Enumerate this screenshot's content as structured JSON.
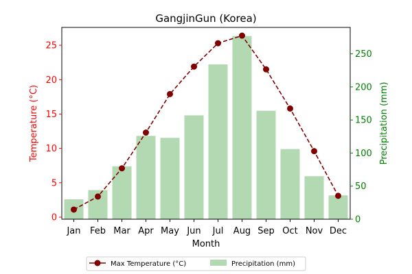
{
  "chart_data": {
    "type": "bar+line",
    "title": "GangjinGun (Korea)",
    "xlabel": "Month",
    "categories": [
      "Jan",
      "Feb",
      "Mar",
      "Apr",
      "May",
      "Jun",
      "Jul",
      "Aug",
      "Sep",
      "Oct",
      "Nov",
      "Dec"
    ],
    "y_left": {
      "label": "Temperature (°C)",
      "range": [
        -0.3,
        27.6
      ],
      "ticks": [
        0,
        5,
        10,
        15,
        20,
        25
      ],
      "color": "#ff0000"
    },
    "y_right": {
      "label": "Precipitation (mm)",
      "range": [
        0,
        290
      ],
      "ticks": [
        0,
        50,
        100,
        150,
        200,
        250
      ],
      "color": "#008000"
    },
    "series": [
      {
        "name": "Max Temperature (°C)",
        "kind": "line",
        "axis": "left",
        "color": "#800000",
        "values": [
          1.1,
          3.0,
          7.1,
          12.3,
          17.9,
          21.9,
          25.3,
          26.4,
          21.5,
          15.8,
          9.6,
          3.1
        ]
      },
      {
        "name": "Precipitation (mm)",
        "kind": "bar",
        "axis": "right",
        "color": "#b2d9b2",
        "values": [
          30,
          44,
          80,
          126,
          123,
          157,
          234,
          277,
          164,
          106,
          65,
          36
        ]
      }
    ],
    "legend": {
      "placement": "bottom-center",
      "entries": [
        "Max Temperature (°C)",
        "Precipitation (mm)"
      ]
    },
    "grid": false
  }
}
